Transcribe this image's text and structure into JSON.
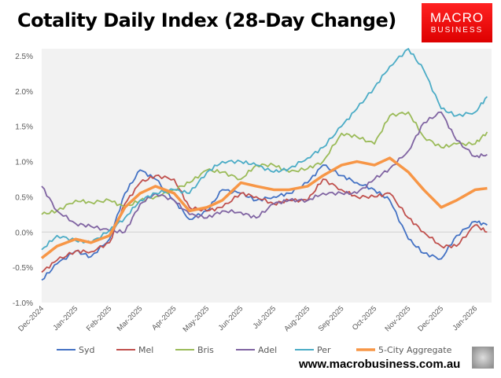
{
  "chart_data": {
    "type": "line",
    "title": "Cotality Daily Index (28-Day Change)",
    "xlabel": "",
    "ylabel": "",
    "ylim": [
      -1.0,
      2.6
    ],
    "yticks": [
      "-1.0%",
      "-0.5%",
      "0.0%",
      "0.5%",
      "1.0%",
      "1.5%",
      "2.0%",
      "2.5%"
    ],
    "ytick_values": [
      -1.0,
      -0.5,
      0,
      0.5,
      1.0,
      1.5,
      2.0,
      2.5
    ],
    "xtick_labels": [
      "Dec-2024",
      "Jan-2025",
      "Feb-2025",
      "Mar-2025",
      "Apr-2025",
      "May-2025",
      "Jun-2025",
      "Jul-2025",
      "Aug-2025",
      "Sep-2025",
      "Oct-2025",
      "Nov-2025",
      "Dec-2025",
      "Jan-2026"
    ],
    "grid": false,
    "legend_position": "bottom",
    "x": [
      "2024-12-01",
      "2024-12-15",
      "2025-01-01",
      "2025-01-15",
      "2025-02-01",
      "2025-02-15",
      "2025-03-01",
      "2025-03-15",
      "2025-04-01",
      "2025-04-15",
      "2025-05-01",
      "2025-05-15",
      "2025-06-01",
      "2025-06-15",
      "2025-07-01",
      "2025-07-15",
      "2025-08-01",
      "2025-08-15",
      "2025-09-01",
      "2025-09-15",
      "2025-10-01",
      "2025-10-15",
      "2025-11-01",
      "2025-11-15",
      "2025-12-01",
      "2025-12-15",
      "2026-01-01",
      "2026-01-12"
    ],
    "series": [
      {
        "name": "Syd",
        "color": "#4472c4",
        "values": [
          -0.68,
          -0.45,
          -0.27,
          -0.35,
          -0.1,
          0.55,
          0.88,
          0.75,
          0.45,
          0.18,
          0.3,
          0.6,
          0.55,
          0.45,
          0.5,
          0.55,
          0.7,
          0.95,
          0.8,
          0.7,
          0.6,
          0.45,
          -0.1,
          -0.3,
          -0.38,
          -0.05,
          0.15,
          0.1
        ]
      },
      {
        "name": "Mel",
        "color": "#c0504d",
        "values": [
          -0.57,
          -0.4,
          -0.27,
          -0.28,
          -0.15,
          0.4,
          0.7,
          0.8,
          0.75,
          0.35,
          0.3,
          0.35,
          0.55,
          0.5,
          0.4,
          0.45,
          0.45,
          0.75,
          0.6,
          0.5,
          0.5,
          0.55,
          0.2,
          0.0,
          -0.2,
          -0.2,
          0.1,
          0.0
        ]
      },
      {
        "name": "Bris",
        "color": "#9bbb59",
        "values": [
          0.25,
          0.3,
          0.45,
          0.42,
          0.45,
          0.35,
          0.45,
          0.5,
          0.6,
          0.7,
          0.88,
          0.85,
          0.75,
          0.95,
          0.95,
          0.85,
          0.9,
          1.0,
          1.4,
          1.35,
          1.25,
          1.65,
          1.7,
          1.35,
          1.2,
          1.25,
          1.25,
          1.42
        ]
      },
      {
        "name": "Adel",
        "color": "#8064a2",
        "values": [
          0.65,
          0.3,
          0.12,
          0.08,
          0.02,
          0.0,
          0.4,
          0.55,
          0.45,
          0.25,
          0.2,
          0.3,
          0.28,
          0.2,
          0.4,
          0.45,
          0.45,
          0.55,
          0.55,
          0.55,
          0.75,
          0.9,
          1.15,
          1.55,
          1.7,
          1.3,
          1.07,
          1.1
        ]
      },
      {
        "name": "Per",
        "color": "#4bacc6",
        "values": [
          -0.25,
          -0.05,
          -0.12,
          -0.15,
          0.02,
          0.2,
          0.45,
          0.55,
          0.6,
          0.55,
          0.85,
          1.0,
          1.0,
          0.95,
          0.85,
          0.9,
          1.05,
          1.2,
          1.5,
          1.75,
          2.05,
          2.35,
          2.6,
          2.3,
          1.75,
          1.65,
          1.7,
          1.92
        ]
      },
      {
        "name": "5-City Aggregate",
        "color": "#f79646",
        "values": [
          -0.37,
          -0.2,
          -0.1,
          -0.15,
          -0.05,
          0.35,
          0.55,
          0.65,
          0.55,
          0.3,
          0.35,
          0.45,
          0.7,
          0.65,
          0.6,
          0.6,
          0.65,
          0.8,
          0.95,
          1.0,
          0.95,
          1.05,
          0.85,
          0.6,
          0.35,
          0.45,
          0.6,
          0.62
        ]
      }
    ]
  },
  "logo": {
    "line1": "MACRO",
    "line2": "BUSINESS"
  },
  "footer": {
    "website": "www.macrobusiness.com.au"
  }
}
